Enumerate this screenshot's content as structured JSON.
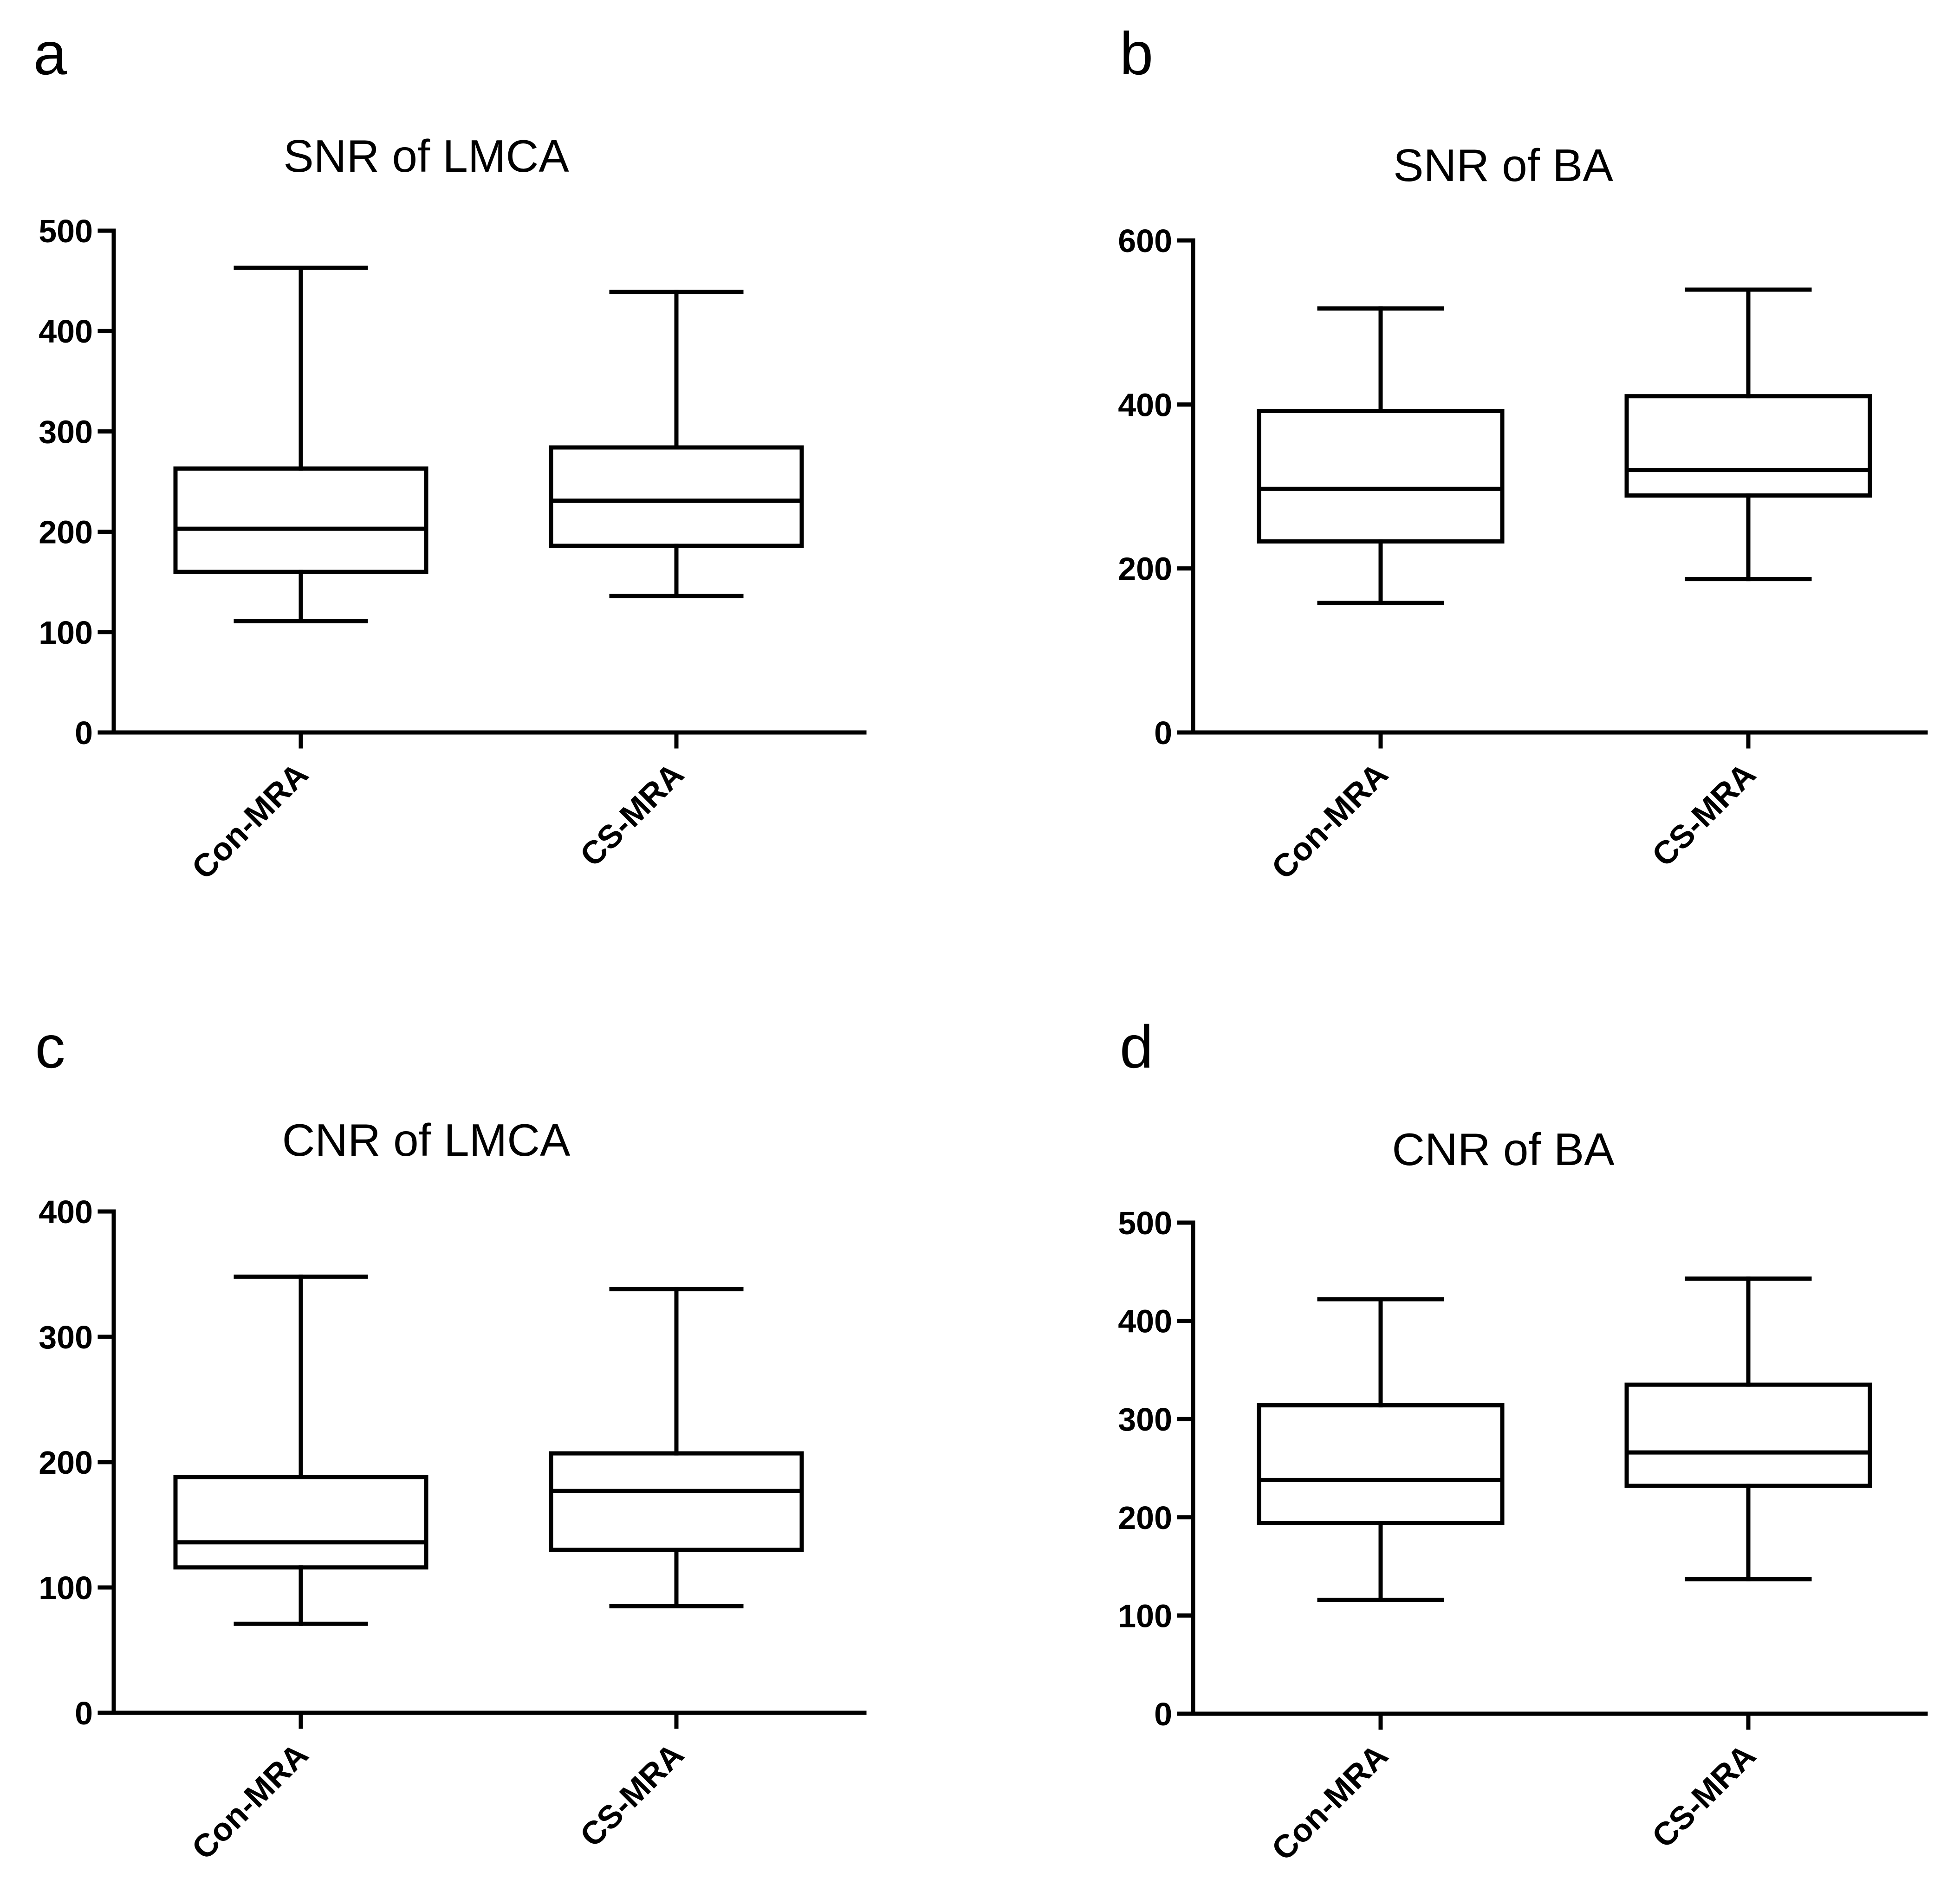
{
  "chart_data": [
    {
      "panel": "a",
      "type": "box",
      "title": "SNR of LMCA",
      "xlabel": "",
      "ylabel": "",
      "ylim": [
        0,
        500
      ],
      "yticks": [
        0,
        100,
        200,
        300,
        400,
        500
      ],
      "categories": [
        "Con-MRA",
        "CS-MRA"
      ],
      "boxes": [
        {
          "name": "Con-MRA",
          "min": 111,
          "q1": 160,
          "median": 203,
          "q3": 263,
          "max": 463
        },
        {
          "name": "CS-MRA",
          "min": 136,
          "q1": 186,
          "median": 231,
          "q3": 284,
          "max": 439
        }
      ]
    },
    {
      "panel": "b",
      "type": "box",
      "title": "SNR of BA",
      "xlabel": "",
      "ylabel": "",
      "ylim": [
        0,
        600
      ],
      "yticks": [
        0,
        200,
        400,
        600
      ],
      "categories": [
        "Con-MRA",
        "CS-MRA"
      ],
      "boxes": [
        {
          "name": "Con-MRA",
          "min": 158,
          "q1": 233,
          "median": 297,
          "q3": 392,
          "max": 517
        },
        {
          "name": "CS-MRA",
          "min": 187,
          "q1": 289,
          "median": 320,
          "q3": 410,
          "max": 540
        }
      ]
    },
    {
      "panel": "c",
      "type": "box",
      "title": "CNR of LMCA",
      "xlabel": "",
      "ylabel": "",
      "ylim": [
        0,
        400
      ],
      "yticks": [
        0,
        100,
        200,
        300,
        400
      ],
      "categories": [
        "Con-MRA",
        "CS-MRA"
      ],
      "boxes": [
        {
          "name": "Con-MRA",
          "min": 71,
          "q1": 116,
          "median": 136,
          "q3": 188,
          "max": 348
        },
        {
          "name": "CS-MRA",
          "min": 85,
          "q1": 130,
          "median": 177,
          "q3": 207,
          "max": 338
        }
      ]
    },
    {
      "panel": "d",
      "type": "box",
      "title": "CNR of BA",
      "xlabel": "",
      "ylabel": "",
      "ylim": [
        0,
        500
      ],
      "yticks": [
        0,
        100,
        200,
        300,
        400,
        500
      ],
      "categories": [
        "Con-MRA",
        "CS-MRA"
      ],
      "boxes": [
        {
          "name": "Con-MRA",
          "min": 116,
          "q1": 194,
          "median": 238,
          "q3": 314,
          "max": 422
        },
        {
          "name": "CS-MRA",
          "min": 137,
          "q1": 232,
          "median": 266,
          "q3": 335,
          "max": 443
        }
      ]
    }
  ]
}
